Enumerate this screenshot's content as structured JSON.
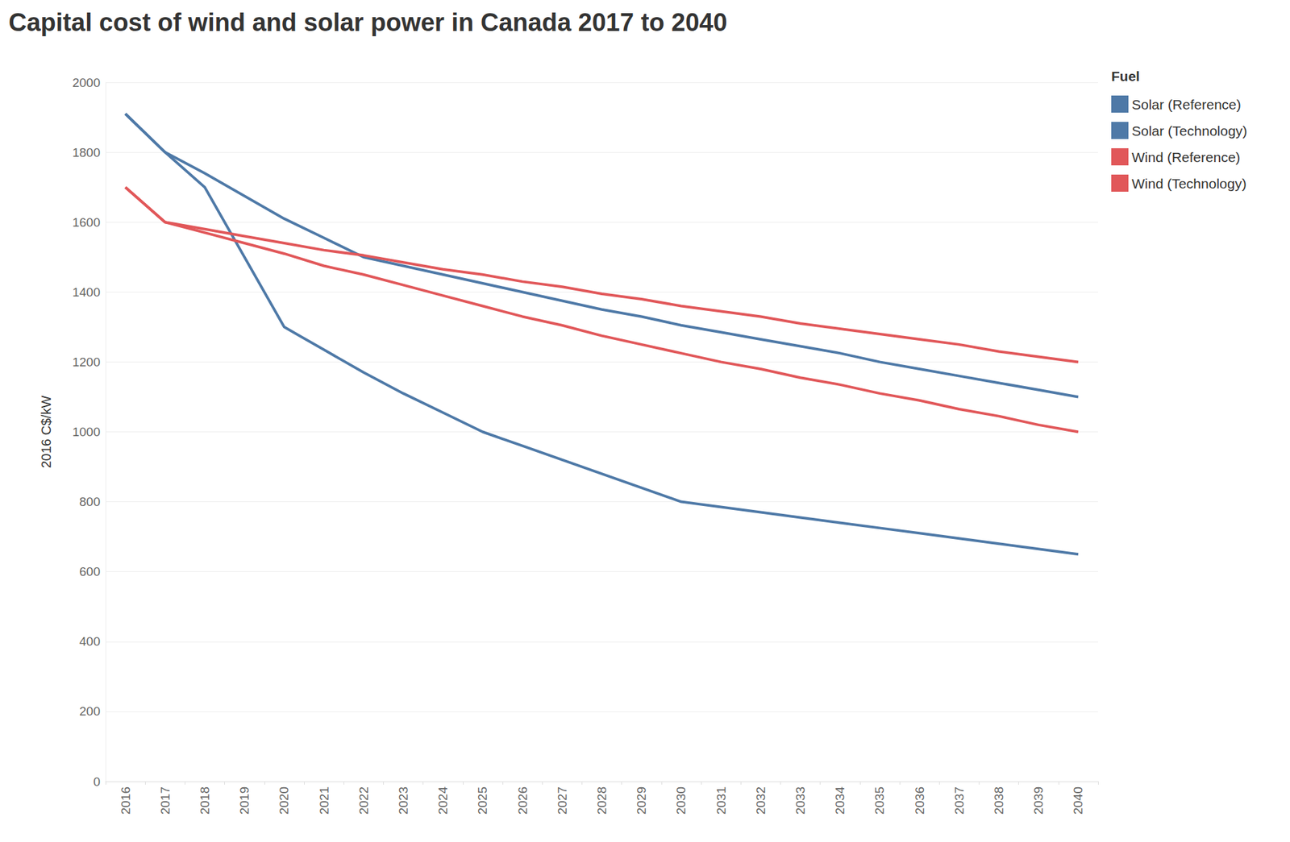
{
  "chart_data": {
    "type": "line",
    "title": "Capital cost of wind and solar power in Canada 2017 to 2040",
    "y_label": "2016 C$/kW",
    "legend_title": "Fuel",
    "categories": [
      "2016",
      "2017",
      "2018",
      "2019",
      "2020",
      "2021",
      "2022",
      "2023",
      "2024",
      "2025",
      "2026",
      "2027",
      "2028",
      "2029",
      "2030",
      "2031",
      "2032",
      "2033",
      "2034",
      "2035",
      "2036",
      "2037",
      "2038",
      "2039",
      "2040"
    ],
    "series": [
      {
        "name": "Solar (Reference)",
        "color": "#4e79a7",
        "values": [
          1910,
          1800,
          1740,
          1675,
          1610,
          1555,
          1500,
          1475,
          1450,
          1425,
          1400,
          1375,
          1350,
          1330,
          1305,
          1285,
          1265,
          1245,
          1225,
          1200,
          1180,
          1160,
          1140,
          1120,
          1100
        ]
      },
      {
        "name": "Solar (Technology)",
        "color": "#4e79a7",
        "values": [
          1910,
          1800,
          1700,
          1500,
          1300,
          1235,
          1170,
          1110,
          1055,
          1000,
          960,
          920,
          880,
          840,
          800,
          785,
          770,
          755,
          740,
          725,
          710,
          695,
          680,
          665,
          650
        ]
      },
      {
        "name": "Wind (Reference)",
        "color": "#e15759",
        "values": [
          1700,
          1600,
          1580,
          1560,
          1540,
          1520,
          1505,
          1485,
          1465,
          1450,
          1430,
          1415,
          1395,
          1380,
          1360,
          1345,
          1330,
          1310,
          1295,
          1280,
          1265,
          1250,
          1230,
          1215,
          1200
        ]
      },
      {
        "name": "Wind (Technology)",
        "color": "#e15759",
        "values": [
          1700,
          1600,
          1570,
          1540,
          1510,
          1475,
          1450,
          1420,
          1390,
          1360,
          1330,
          1305,
          1275,
          1250,
          1225,
          1200,
          1180,
          1155,
          1135,
          1110,
          1090,
          1065,
          1045,
          1020,
          1000
        ]
      }
    ],
    "ylim": [
      0,
      2000
    ],
    "yticks": [
      0,
      200,
      400,
      600,
      800,
      1000,
      1200,
      1400,
      1600,
      1800,
      2000
    ],
    "grid": true,
    "legend": "top-right"
  }
}
